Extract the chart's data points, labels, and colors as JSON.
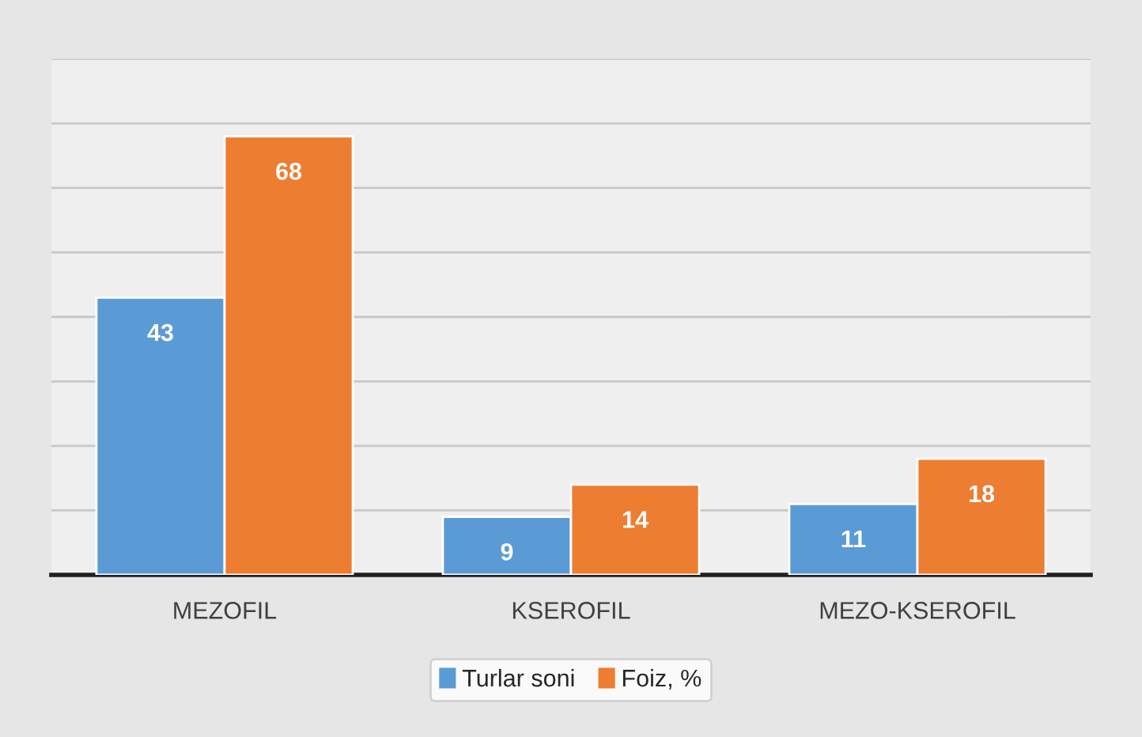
{
  "chart_data": {
    "type": "bar",
    "categories": [
      "MEZOFIL",
      "KSEROFIL",
      "MEZO-KSEROFIL"
    ],
    "series": [
      {
        "name": "Turlar soni",
        "color": "#5b9bd5",
        "values": [
          43,
          9,
          11
        ]
      },
      {
        "name": "Foiz, %",
        "color": "#ed7d31",
        "values": [
          68,
          14,
          18
        ]
      }
    ],
    "ylim": [
      0,
      80
    ],
    "yticks": [
      {
        "value": 0,
        "label": null
      },
      {
        "value": 10,
        "label": null
      },
      {
        "value": 20,
        "label": null
      },
      {
        "value": 30,
        "label": null
      },
      {
        "value": 40,
        "label": null
      },
      {
        "value": 50,
        "label": null
      },
      {
        "value": 60,
        "label": null
      },
      {
        "value": 70,
        "label": null
      },
      {
        "value": 80,
        "label": null
      }
    ],
    "tick_labels": "x",
    "grid": "y",
    "data_labels": true,
    "legend": "bottom"
  }
}
